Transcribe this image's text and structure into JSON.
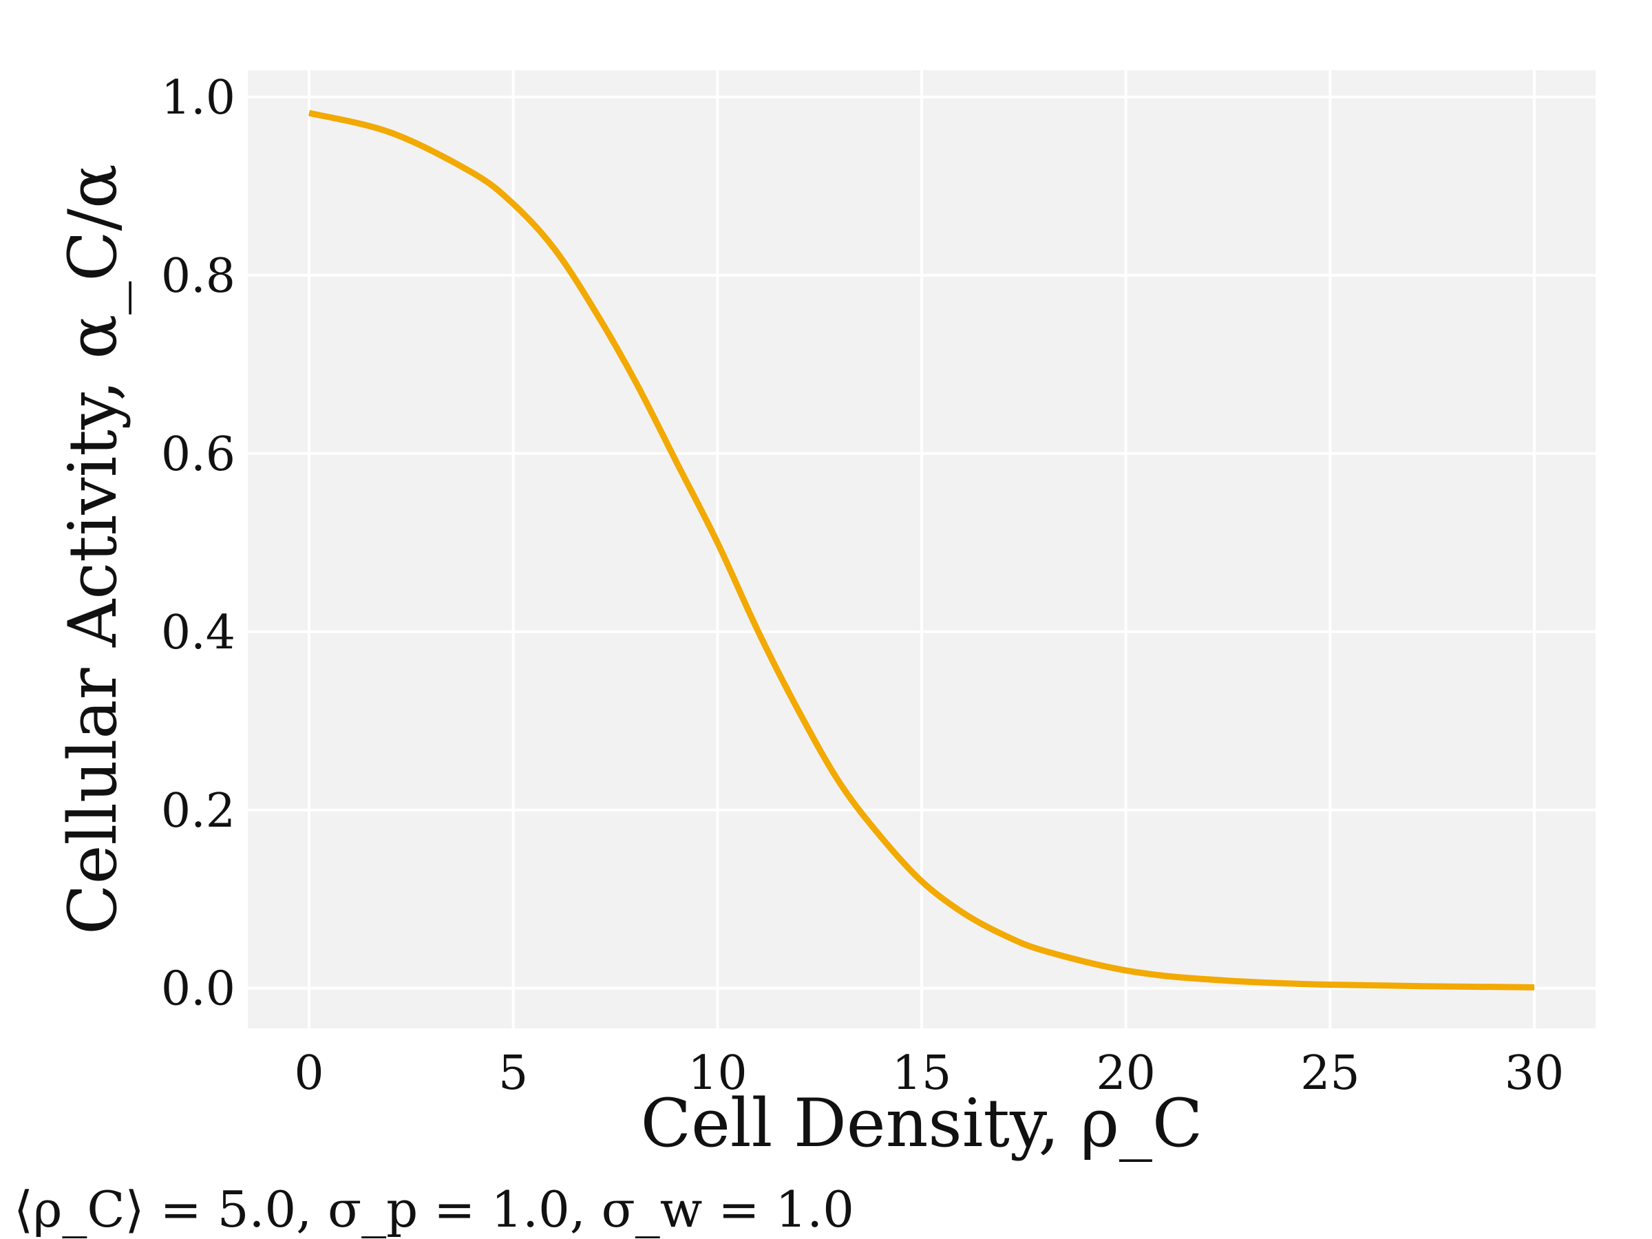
{
  "chart_data": {
    "type": "line",
    "xlabel": "Cell Density, ρ_C",
    "ylabel": "Cellular Activity, α_C/α",
    "caption": "⟨ρ_C⟩ = 5.0, σ_p = 1.0, σ_w = 1.0",
    "xlim": [
      -1.5,
      31.5
    ],
    "ylim": [
      -0.045,
      1.03
    ],
    "x_ticks": [
      0,
      5,
      10,
      15,
      20,
      25,
      30
    ],
    "x_tick_labels": [
      "0",
      "5",
      "10",
      "15",
      "20",
      "25",
      "30"
    ],
    "y_ticks": [
      0.0,
      0.2,
      0.4,
      0.6,
      0.8,
      1.0
    ],
    "y_tick_labels": [
      "0.0",
      "0.2",
      "0.4",
      "0.6",
      "0.8",
      "1.0"
    ],
    "grid": true,
    "background_color": "#f2f2f2",
    "series": [
      {
        "color": "#f2a900",
        "x": [
          0,
          2,
          4,
          5,
          6,
          7,
          8,
          9,
          10,
          11,
          12,
          13,
          14,
          15,
          16,
          17,
          18,
          20,
          22,
          25,
          30
        ],
        "y": [
          0.982,
          0.96,
          0.915,
          0.88,
          0.83,
          0.76,
          0.68,
          0.59,
          0.5,
          0.4,
          0.31,
          0.23,
          0.17,
          0.12,
          0.085,
          0.06,
          0.042,
          0.02,
          0.01,
          0.004,
          0.001
        ]
      }
    ]
  }
}
